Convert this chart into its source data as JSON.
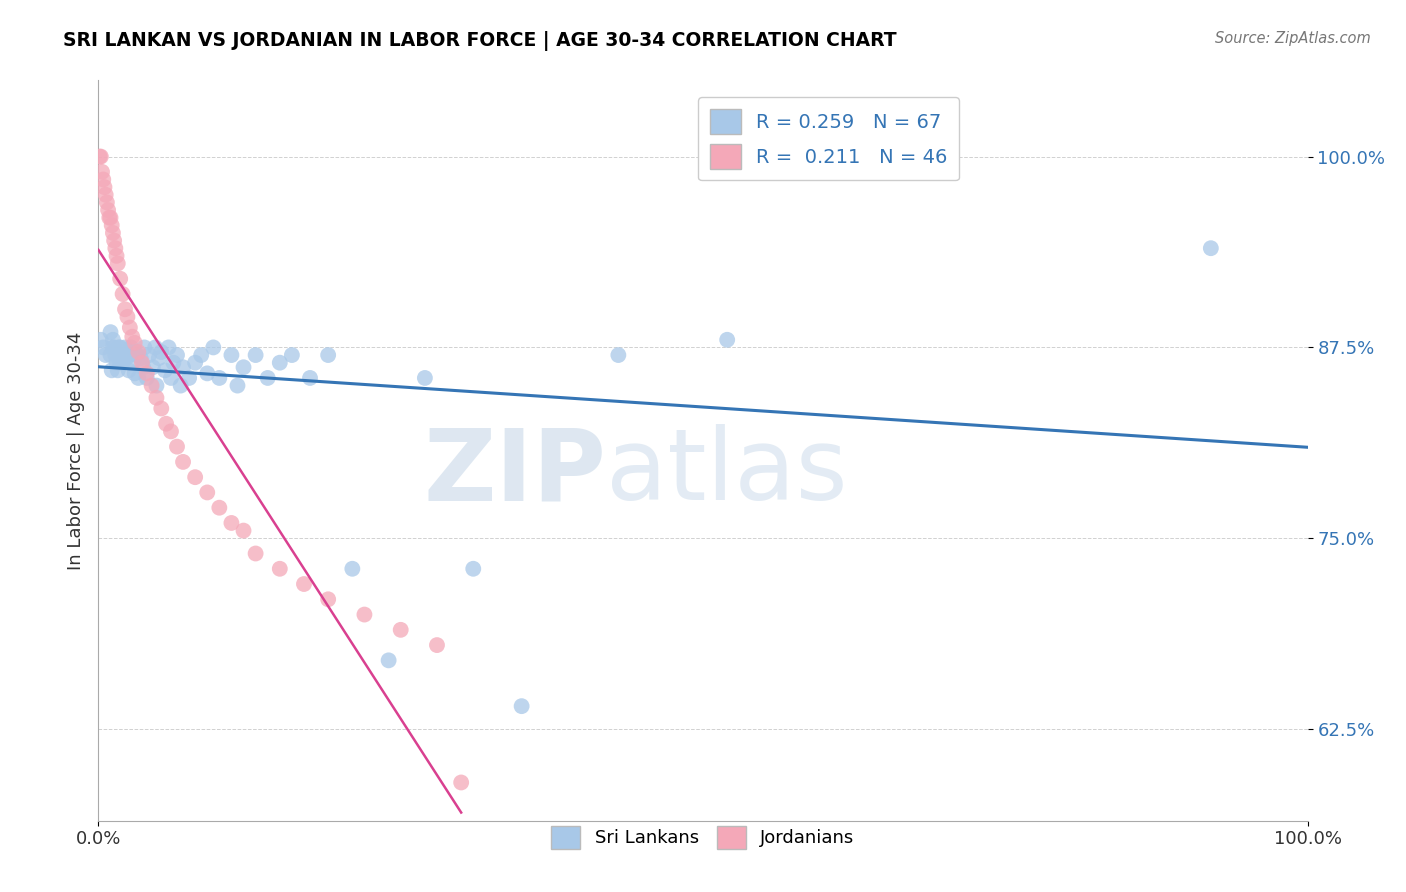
{
  "title": "SRI LANKAN VS JORDANIAN IN LABOR FORCE | AGE 30-34 CORRELATION CHART",
  "source_text": "Source: ZipAtlas.com",
  "ylabel": "In Labor Force | Age 30-34",
  "legend_r_blue": "0.259",
  "legend_n_blue": "67",
  "legend_r_pink": "0.211",
  "legend_n_pink": "46",
  "blue_color": "#a8c8e8",
  "pink_color": "#f4a8b8",
  "blue_line_color": "#3575b5",
  "pink_line_color": "#d94090",
  "watermark_zip": "ZIP",
  "watermark_atlas": "atlas",
  "xlim": [
    0.0,
    1.0
  ],
  "ylim": [
    0.565,
    1.05
  ],
  "yticks": [
    0.625,
    0.75,
    0.875,
    1.0
  ],
  "ytick_labels": [
    "62.5%",
    "75.0%",
    "87.5%",
    "100.0%"
  ],
  "xticks": [
    0.0,
    1.0
  ],
  "xtick_labels": [
    "0.0%",
    "100.0%"
  ],
  "sri_lankan_x": [
    0.002,
    0.004,
    0.006,
    0.01,
    0.01,
    0.011,
    0.012,
    0.012,
    0.013,
    0.014,
    0.015,
    0.016,
    0.017,
    0.018,
    0.018,
    0.02,
    0.02,
    0.022,
    0.023,
    0.025,
    0.025,
    0.027,
    0.028,
    0.03,
    0.03,
    0.032,
    0.033,
    0.035,
    0.037,
    0.038,
    0.04,
    0.042,
    0.045,
    0.047,
    0.048,
    0.05,
    0.052,
    0.055,
    0.058,
    0.06,
    0.062,
    0.065,
    0.068,
    0.07,
    0.075,
    0.08,
    0.085,
    0.09,
    0.095,
    0.1,
    0.11,
    0.115,
    0.12,
    0.13,
    0.14,
    0.15,
    0.16,
    0.175,
    0.19,
    0.21,
    0.24,
    0.27,
    0.31,
    0.35,
    0.43,
    0.52,
    0.92
  ],
  "sri_lankan_y": [
    0.88,
    0.875,
    0.87,
    0.885,
    0.87,
    0.86,
    0.875,
    0.88,
    0.875,
    0.87,
    0.865,
    0.86,
    0.875,
    0.865,
    0.875,
    0.87,
    0.865,
    0.875,
    0.868,
    0.87,
    0.86,
    0.875,
    0.865,
    0.872,
    0.858,
    0.87,
    0.855,
    0.868,
    0.862,
    0.875,
    0.855,
    0.87,
    0.862,
    0.875,
    0.85,
    0.868,
    0.872,
    0.86,
    0.875,
    0.855,
    0.865,
    0.87,
    0.85,
    0.862,
    0.855,
    0.865,
    0.87,
    0.858,
    0.875,
    0.855,
    0.87,
    0.85,
    0.862,
    0.87,
    0.855,
    0.865,
    0.87,
    0.855,
    0.87,
    0.73,
    0.67,
    0.855,
    0.73,
    0.64,
    0.87,
    0.88,
    0.94
  ],
  "jordanian_x": [
    0.001,
    0.002,
    0.003,
    0.004,
    0.005,
    0.006,
    0.007,
    0.008,
    0.009,
    0.01,
    0.011,
    0.012,
    0.013,
    0.014,
    0.015,
    0.016,
    0.018,
    0.02,
    0.022,
    0.024,
    0.026,
    0.028,
    0.03,
    0.033,
    0.036,
    0.04,
    0.044,
    0.048,
    0.052,
    0.056,
    0.06,
    0.065,
    0.07,
    0.08,
    0.09,
    0.1,
    0.11,
    0.12,
    0.13,
    0.15,
    0.17,
    0.19,
    0.22,
    0.25,
    0.28,
    0.3
  ],
  "jordanian_y": [
    1.0,
    1.0,
    0.99,
    0.985,
    0.98,
    0.975,
    0.97,
    0.965,
    0.96,
    0.96,
    0.955,
    0.95,
    0.945,
    0.94,
    0.935,
    0.93,
    0.92,
    0.91,
    0.9,
    0.895,
    0.888,
    0.882,
    0.878,
    0.872,
    0.865,
    0.858,
    0.85,
    0.842,
    0.835,
    0.825,
    0.82,
    0.81,
    0.8,
    0.79,
    0.78,
    0.77,
    0.76,
    0.755,
    0.74,
    0.73,
    0.72,
    0.71,
    0.7,
    0.69,
    0.68,
    0.59
  ]
}
